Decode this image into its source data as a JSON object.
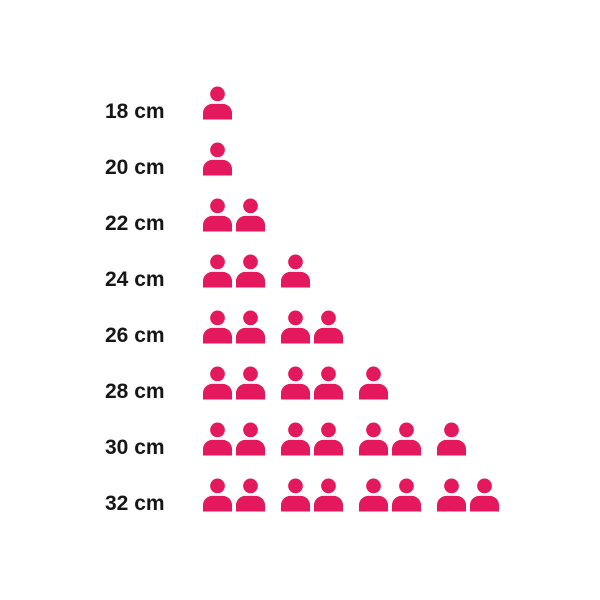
{
  "page": {
    "background": "#ffffff"
  },
  "chart_data": {
    "type": "bar",
    "variant": "pictogram (person icons, 1 icon = 1 unit, icons grouped in pairs)",
    "title": "",
    "xlabel": "",
    "ylabel": "",
    "legend": "none",
    "grid": false,
    "categories": [
      "18 cm",
      "20 cm",
      "22 cm",
      "24 cm",
      "26 cm",
      "28 cm",
      "30 cm",
      "32 cm"
    ],
    "values": [
      1,
      1,
      2,
      3,
      4,
      5,
      7,
      8
    ],
    "xlim": [
      0,
      8
    ],
    "icon": "person-icon",
    "icon_grouping": 2,
    "icon_color": "#e4185c",
    "label_color": "#161616"
  }
}
